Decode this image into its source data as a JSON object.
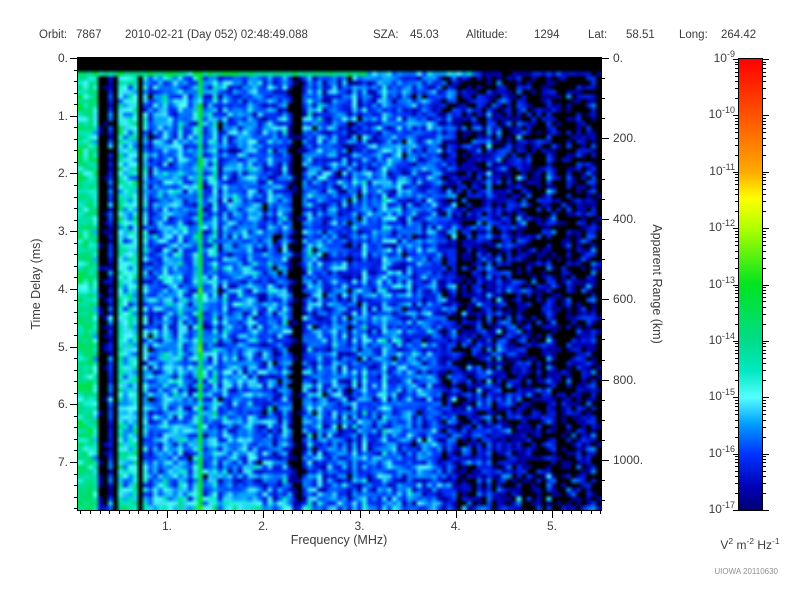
{
  "header": {
    "orbit_label": "Orbit:",
    "orbit_value": "7867",
    "datetime": "2010-02-21 (Day 052) 02:48:49.088",
    "sza_label": "SZA:",
    "sza_value": "45.03",
    "altitude_label": "Altitude:",
    "altitude_value": "1294",
    "lat_label": "Lat:",
    "lat_value": "58.51",
    "long_label": "Long:",
    "long_value": "264.42"
  },
  "credit": "UIOWA 20110630",
  "chart_data": {
    "type": "heatmap",
    "xlabel": "Frequency (MHz)",
    "ylabel_left": "Time Delay (ms)",
    "ylabel_right": "Apparent Range (km)",
    "x_range": [
      0.07,
      5.5
    ],
    "y_range": [
      0,
      7.83
    ],
    "y_right_range_km": [
      0,
      1124
    ],
    "x_tick_labels": [
      "1.",
      "2.",
      "3.",
      "4.",
      "5."
    ],
    "x_tick_values": [
      1,
      2,
      3,
      4,
      5
    ],
    "x_minor_step": 0.1,
    "y_tick_labels": [
      "0.",
      "1.",
      "2.",
      "3.",
      "4.",
      "5.",
      "6.",
      "7."
    ],
    "y_tick_values": [
      0,
      1,
      2,
      3,
      4,
      5,
      6,
      7
    ],
    "y_minor_step": 0.2,
    "y_right_tick_labels": [
      "0.",
      "200.",
      "400.",
      "600.",
      "800.",
      "1000."
    ],
    "y_right_tick_values": [
      0,
      200,
      400,
      600,
      800,
      1000
    ],
    "y_right_minor_step": 50,
    "grid": false,
    "colorbar": {
      "scale": "log10",
      "max": "1e-9",
      "min": "1e-17",
      "tick_exponents": [
        "-9",
        "-10",
        "-11",
        "-12",
        "-13",
        "-14",
        "-15",
        "-16",
        "-17"
      ],
      "units_parts": [
        {
          "base": "V",
          "sup": "2"
        },
        {
          "base": "m",
          "sup": "-2"
        },
        {
          "base": "Hz",
          "sup": "-1"
        }
      ]
    },
    "colormap": {
      "scale_min": -17,
      "scale_max": -9,
      "black_threshold": -16.9,
      "stops": [
        {
          "t": 0.0,
          "c": "#000074"
        },
        {
          "t": 0.05,
          "c": "#0000b4"
        },
        {
          "t": 0.125,
          "c": "#0034ff"
        },
        {
          "t": 0.19,
          "c": "#009cff"
        },
        {
          "t": 0.25,
          "c": "#55ffff"
        },
        {
          "t": 0.31,
          "c": "#00e8c0"
        },
        {
          "t": 0.375,
          "c": "#00dc8a"
        },
        {
          "t": 0.5,
          "c": "#00e420"
        },
        {
          "t": 0.625,
          "c": "#b0ff00"
        },
        {
          "t": 0.69,
          "c": "#ffff00"
        },
        {
          "t": 0.75,
          "c": "#ffaa00"
        },
        {
          "t": 0.875,
          "c": "#ff5200"
        },
        {
          "t": 1.0,
          "c": "#ff0000"
        }
      ]
    },
    "heatmap_model": {
      "seed": 1337,
      "grid_cols": 105,
      "grid_rows": 100,
      "top_black_delay_ms": 0.26,
      "surface_line": {
        "thickness_ms": 0.09,
        "segments": [
          {
            "f_max": 3.05,
            "value": -14.0
          },
          {
            "f_max": 4.25,
            "value": -15.3
          },
          {
            "f_max": 5.6,
            "value": -16.6
          }
        ],
        "fleck_probability": 0.22,
        "fleck_value": -13.1,
        "fleck_f_max": 1.7
      },
      "base_profile": [
        [
          0.07,
          -15.45
        ],
        [
          0.5,
          -15.5
        ],
        [
          1.0,
          -15.6
        ],
        [
          1.8,
          -15.7
        ],
        [
          2.6,
          -15.8
        ],
        [
          3.3,
          -15.9
        ],
        [
          4.0,
          -16.1
        ],
        [
          4.8,
          -16.35
        ],
        [
          5.5,
          -16.45
        ]
      ],
      "col_sigma": 0.28,
      "cell_sigma": 0.45,
      "left_stripe_zone": {
        "f_max": 0.78,
        "sigma": 0.75,
        "p_black": 0.16,
        "p_bright": 0.2,
        "bright_boost": 1.05
      },
      "bright_stripes": [
        {
          "f": 0.1,
          "width": 0.05,
          "boost": 1.4
        },
        {
          "f": 0.2,
          "width": 0.025,
          "boost": 1.0
        },
        {
          "f": 0.42,
          "width": 0.02,
          "boost": 0.9
        },
        {
          "f": 0.62,
          "width": 0.02,
          "boost": 0.8
        },
        {
          "f": 1.315,
          "width": 0.028,
          "boost": 1.9
        },
        {
          "f": 1.5,
          "width": 0.02,
          "boost": 0.6
        }
      ],
      "dark_bands": [
        {
          "f1": 2.31,
          "f2": 2.42,
          "value": -17.1
        }
      ],
      "dark_drops": [
        {
          "f1": 0.28,
          "f2": 0.47,
          "drop": 1.3
        },
        {
          "f1": 4.98,
          "f2": 5.12,
          "drop": 0.45
        }
      ],
      "right_zone": {
        "f_min": 3.85,
        "extra_drop": 0.3,
        "extra_sigma": 0.25
      },
      "bottom_bright": {
        "delay_min": 7.55,
        "f_split": 2.5,
        "boost_low": 0.8,
        "boost_high": 0.3
      }
    },
    "features_note": "Active ionospheric sounding ionogram: diffuse blue noise field; bright cyan vertical stripes below 0.8 MHz; bright narrow line at 1.31 MHz; dark absorption band at 2.31-2.42 MHz; black below-threshold speckle above ~3.9 MHz; black band at zero delay with bright surface-return line near 0.3 ms"
  }
}
